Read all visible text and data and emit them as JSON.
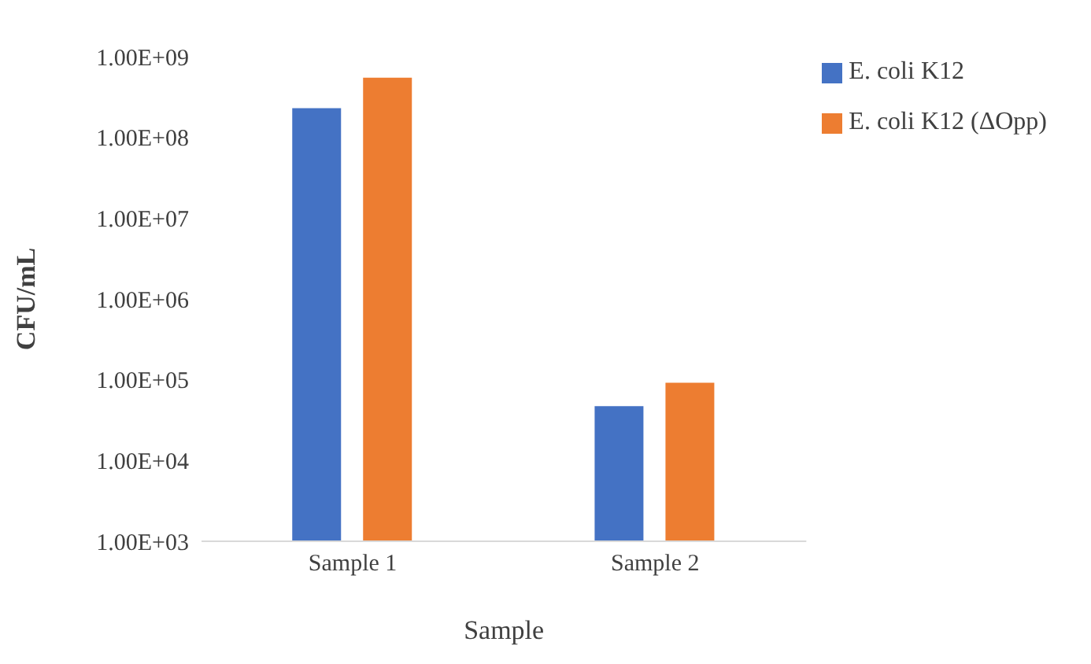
{
  "chart_data": {
    "type": "bar",
    "xlabel": "Sample",
    "ylabel": "CFU/mL",
    "categories": [
      "Sample 1",
      "Sample 2"
    ],
    "series": [
      {
        "name": "E. coli K12",
        "color": "#4472c4",
        "values": [
          230000000,
          47000
        ]
      },
      {
        "name": "E. coli K12 (ΔOpp)",
        "color": "#ed7d31",
        "values": [
          550000000,
          92000
        ]
      }
    ],
    "log": true,
    "ylim": [
      1000,
      1000000000
    ],
    "yticks": [
      {
        "value": 1000,
        "label": "1.00E+03"
      },
      {
        "value": 10000,
        "label": "1.00E+04"
      },
      {
        "value": 100000,
        "label": "1.00E+05"
      },
      {
        "value": 1000000,
        "label": "1.00E+06"
      },
      {
        "value": 10000000,
        "label": "1.00E+07"
      },
      {
        "value": 100000000,
        "label": "1.00E+08"
      },
      {
        "value": 1000000000,
        "label": "1.00E+09"
      }
    ],
    "legend": "top right",
    "grid": false
  }
}
